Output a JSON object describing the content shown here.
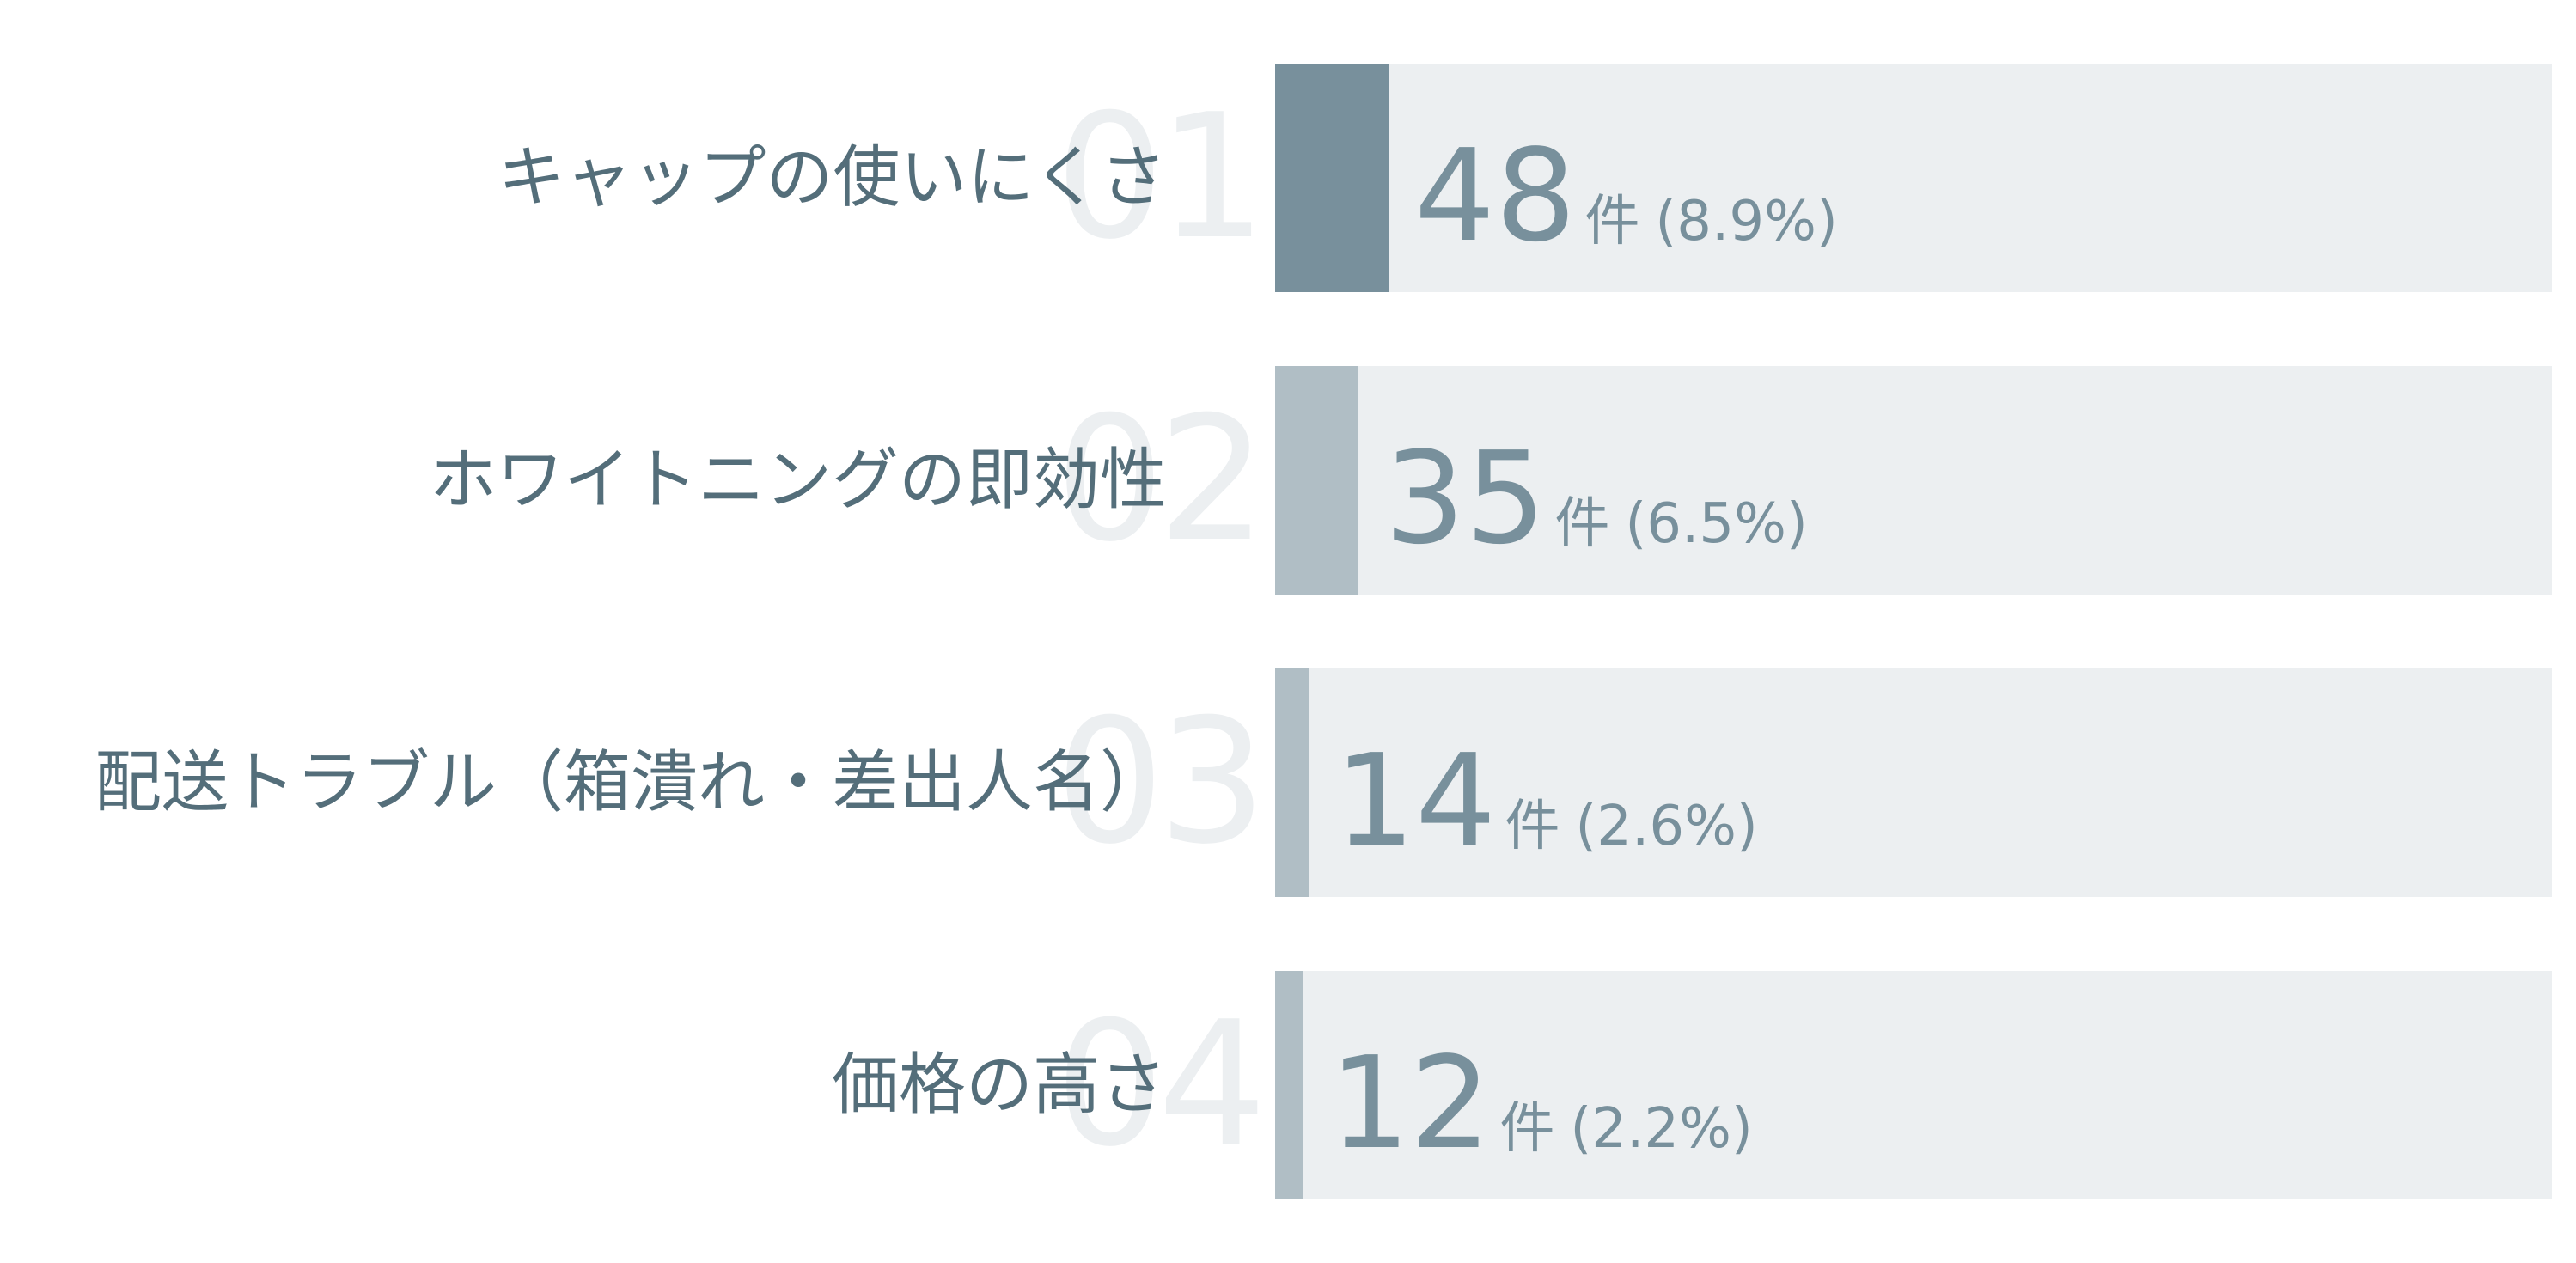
{
  "chart_data": {
    "type": "bar",
    "orientation": "horizontal",
    "categories": [
      "キャップの使いにくさ",
      "ホワイトニングの即効性",
      "配送トラブル（箱潰れ・差出人名）",
      "価格の高さ"
    ],
    "ranks": [
      "01",
      "02",
      "03",
      "04"
    ],
    "values": [
      48,
      35,
      14,
      12
    ],
    "percents": [
      8.9,
      6.5,
      2.6,
      2.2
    ],
    "unit_label": "件",
    "percent_labels": [
      "(8.9%)",
      "(6.5%)",
      "(2.6%)",
      "(2.2%)"
    ],
    "xlim": [
      0,
      100
    ],
    "title": "",
    "xlabel": "",
    "ylabel": "",
    "grid": false,
    "legend": "none",
    "colors": {
      "top_bar": "#78909c",
      "other_bars": "#b0bec5",
      "track": "#eceff1",
      "label_text": "#546e7a",
      "value_text": "#78909c",
      "rank_text": "#eceff1"
    }
  }
}
